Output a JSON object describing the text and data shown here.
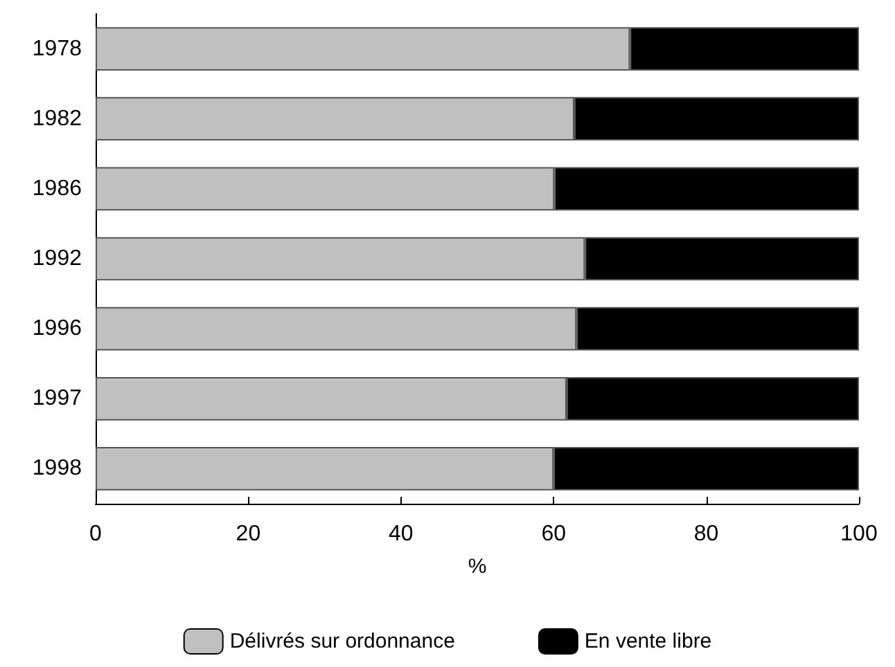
{
  "chart_data": {
    "type": "bar",
    "orientation": "horizontal",
    "stacked": true,
    "xlabel": "%",
    "categories": [
      "1978",
      "1982",
      "1986",
      "1992",
      "1996",
      "1997",
      "1998"
    ],
    "series": [
      {
        "name": "Délivrés sur ordonnance",
        "color": "#c0c0c0",
        "values": [
          70,
          62.7,
          60.1,
          64.1,
          63.0,
          61.7,
          60.0
        ]
      },
      {
        "name": "En vente libre",
        "color": "#000000",
        "values": [
          30,
          37.3,
          39.9,
          35.9,
          37.0,
          38.3,
          40.0
        ]
      }
    ],
    "xlim": [
      0,
      100
    ],
    "xticks": [
      0,
      20,
      40,
      60,
      80,
      100
    ],
    "grid": false,
    "legend": "bottom"
  }
}
